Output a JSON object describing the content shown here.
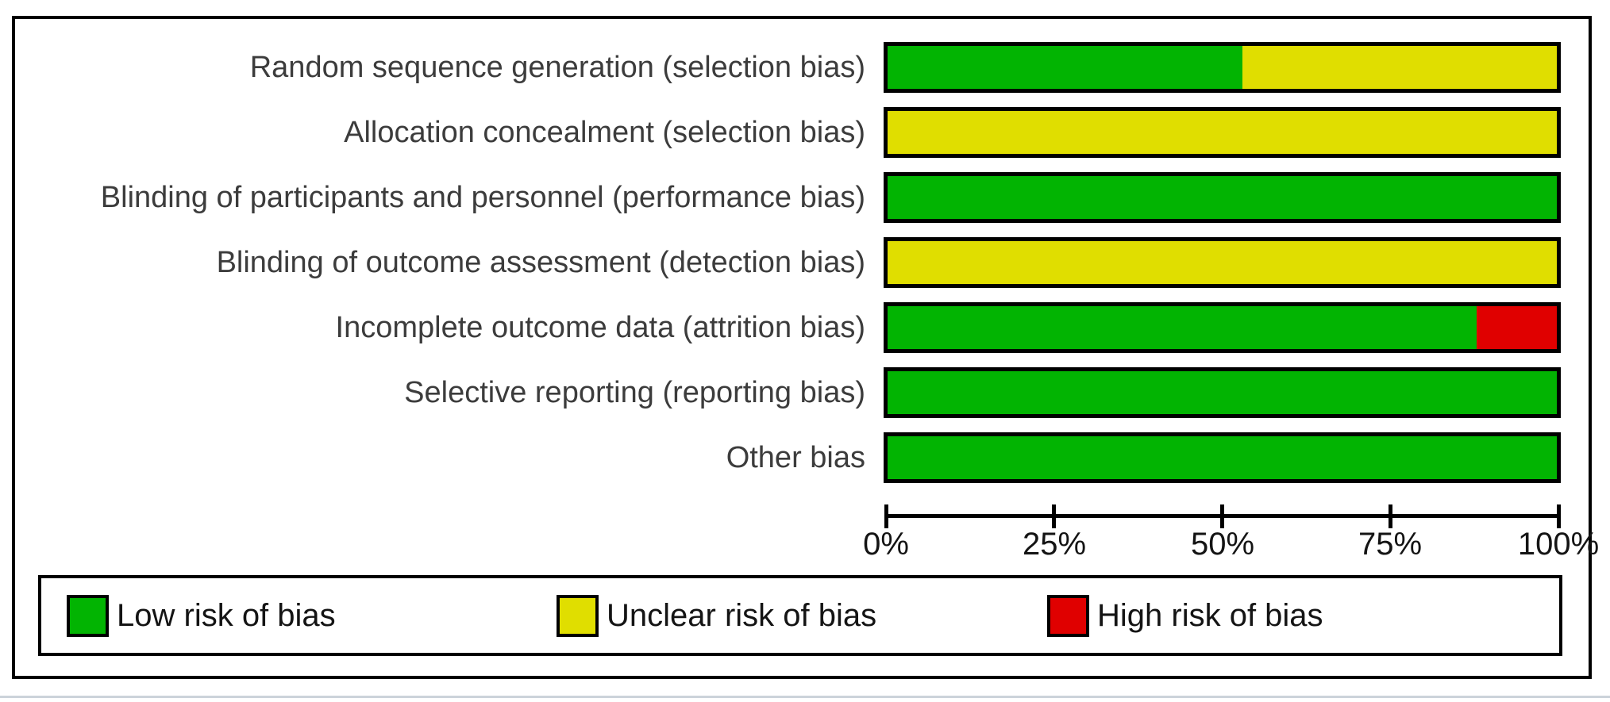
{
  "chart_data": {
    "type": "bar",
    "orientation": "horizontal_stacked",
    "title": "",
    "categories": [
      "Random sequence generation (selection bias)",
      "Allocation concealment (selection bias)",
      "Blinding of participants and personnel (performance bias)",
      "Blinding of outcome assessment (detection bias)",
      "Incomplete outcome data (attrition bias)",
      "Selective reporting (reporting bias)",
      "Other bias"
    ],
    "series": [
      {
        "name": "Low risk of bias",
        "color": "#02b402",
        "values": [
          53,
          0,
          100,
          0,
          88,
          100,
          100
        ]
      },
      {
        "name": "Unclear risk of bias",
        "color": "#e0de00",
        "values": [
          47,
          100,
          0,
          100,
          0,
          0,
          0
        ]
      },
      {
        "name": "High risk of bias",
        "color": "#e00000",
        "values": [
          0,
          0,
          0,
          0,
          12,
          0,
          0
        ]
      }
    ],
    "x_ticks": [
      "0%",
      "25%",
      "50%",
      "75%",
      "100%"
    ],
    "xlim": [
      0,
      100
    ],
    "grid": false,
    "legend_position": "bottom"
  }
}
